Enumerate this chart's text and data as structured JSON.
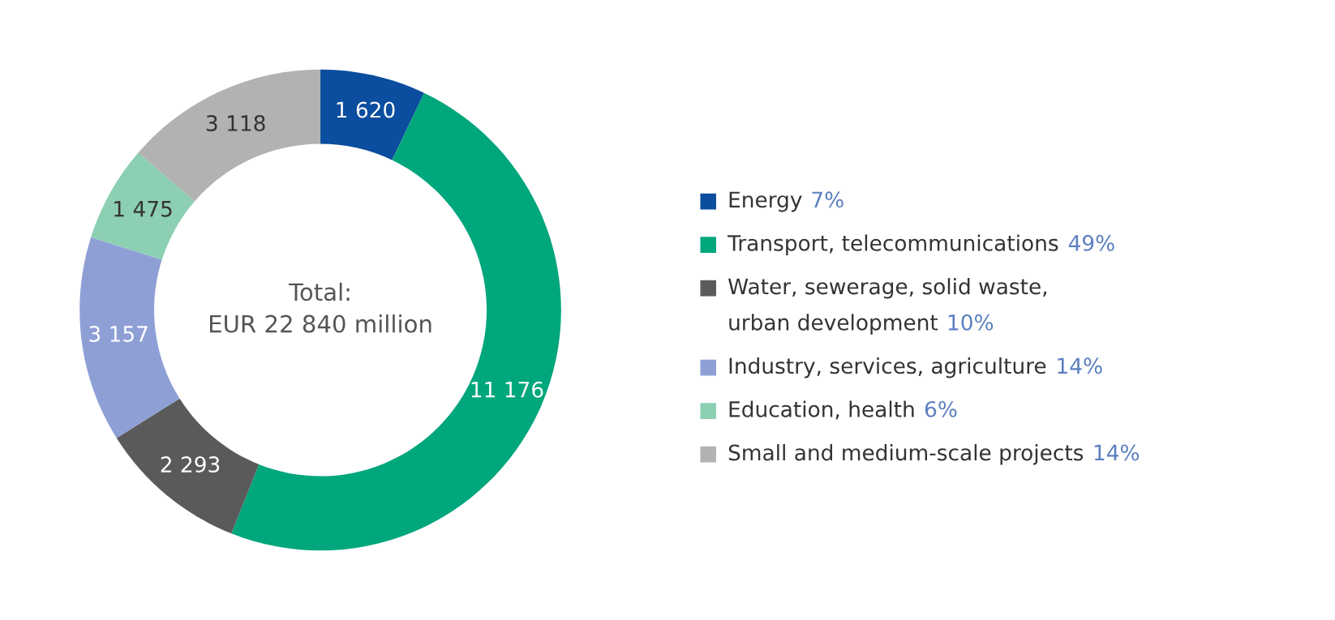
{
  "chart_data": {
    "type": "donut",
    "categories": [
      "Energy 7%",
      "Transport, telecommunications 49%",
      "Water, sewerage, solid waste,\nurban development 10%",
      "Industry, services, agriculture 14%",
      "Education, health 6%",
      "Small and medium-scale projects 14%"
    ],
    "values": [
      1620,
      11176,
      2293,
      3157,
      1475,
      3118
    ],
    "value_labels": [
      "1 620",
      "11 176",
      "2 293",
      "3 157",
      "1 475",
      "3 118"
    ],
    "colors": [
      "#0b4d9e",
      "#00a67c",
      "#5a5a5a",
      "#8e9fd6",
      "#8ccfb3",
      "#b2b2b2"
    ],
    "annotations": [
      "Total:\nEUR 22 840 million"
    ],
    "legend": "right"
  }
}
